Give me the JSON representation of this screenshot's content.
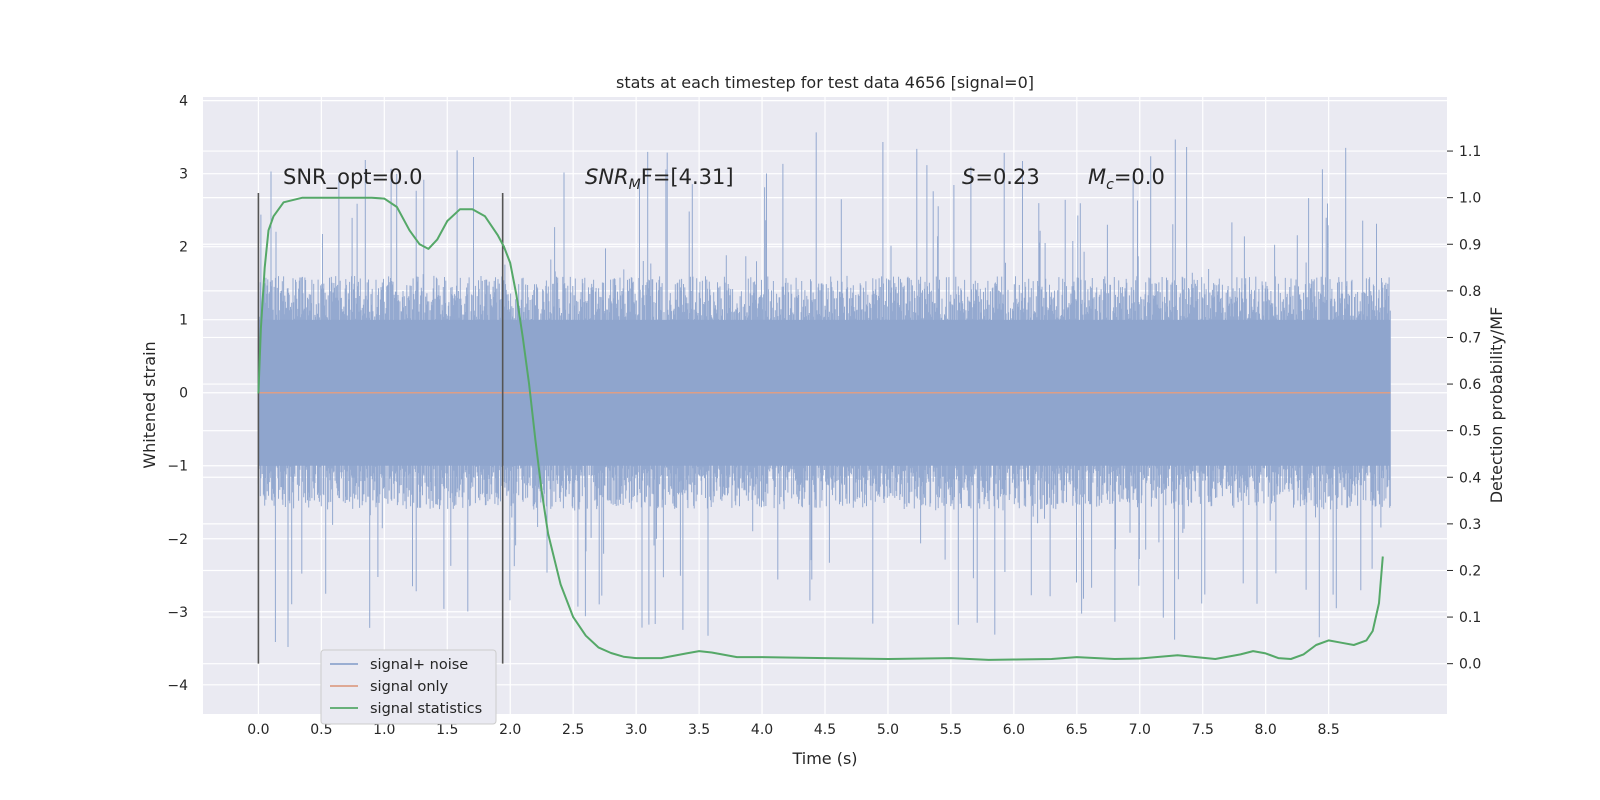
{
  "chart_data": {
    "type": "line",
    "title": "stats at each timestep for test data 4656 [signal=0]",
    "xlabel": "Time (s)",
    "ylabel": "Whitened strain",
    "y2label": "Detection probability/MF",
    "xlim": [
      -0.44,
      9.44
    ],
    "ylim": [
      -4.4,
      4.05
    ],
    "y2lim": [
      -0.108,
      1.216
    ],
    "x_ticks": [
      "0.0",
      "0.5",
      "1.0",
      "1.5",
      "2.0",
      "2.5",
      "3.0",
      "3.5",
      "4.0",
      "4.5",
      "5.0",
      "5.5",
      "6.0",
      "6.5",
      "7.0",
      "7.5",
      "8.0",
      "8.5"
    ],
    "x_tick_values": [
      0.0,
      0.5,
      1.0,
      1.5,
      2.0,
      2.5,
      3.0,
      3.5,
      4.0,
      4.5,
      5.0,
      5.5,
      6.0,
      6.5,
      7.0,
      7.5,
      8.0,
      8.5
    ],
    "y_ticks": [
      "4",
      "3",
      "2",
      "1",
      "0",
      "−1",
      "−2",
      "−3",
      "−4"
    ],
    "y_tick_values": [
      4,
      3,
      2,
      1,
      0,
      -1,
      -2,
      -3,
      -4
    ],
    "y2_ticks": [
      "1.1",
      "1.0",
      "0.9",
      "0.8",
      "0.7",
      "0.6",
      "0.5",
      "0.4",
      "0.3",
      "0.2",
      "0.1",
      "0.0"
    ],
    "y2_tick_values": [
      1.1,
      1.0,
      0.9,
      0.8,
      0.7,
      0.6,
      0.5,
      0.4,
      0.3,
      0.2,
      0.1,
      0.0
    ],
    "annotations": {
      "snr_opt": "SNR_opt=0.0",
      "snr_mf_main": "SNR",
      "snr_mf_sub": "M",
      "snr_mf_rest": "F=[4.31]",
      "s_label": "S",
      "s_value": "=0.23",
      "mc_label": "M",
      "mc_sub": "c",
      "mc_value": "=0.0"
    },
    "vertical_markers_x": [
      0.0,
      1.94
    ],
    "series": [
      {
        "name": "signal+ noise",
        "axis": "left",
        "color": "#8fa5cd",
        "x_range": [
          0.0,
          8.99
        ],
        "typical_band": [
          -1.6,
          1.6
        ],
        "peak_max": 3.65,
        "peak_min": -3.6
      },
      {
        "name": "signal only",
        "axis": "left",
        "color": "#dd9e86",
        "x": [
          0.0,
          8.99
        ],
        "y": [
          0.0,
          0.0
        ]
      },
      {
        "name": "signal statistics",
        "axis": "right",
        "color": "#55a868",
        "x": [
          0.0,
          0.02,
          0.05,
          0.08,
          0.12,
          0.2,
          0.35,
          0.5,
          0.7,
          0.9,
          1.0,
          1.1,
          1.2,
          1.28,
          1.35,
          1.42,
          1.5,
          1.6,
          1.7,
          1.8,
          1.9,
          1.95,
          2.0,
          2.05,
          2.1,
          2.15,
          2.2,
          2.25,
          2.3,
          2.4,
          2.5,
          2.6,
          2.7,
          2.8,
          2.9,
          3.0,
          3.2,
          3.4,
          3.5,
          3.6,
          3.8,
          4.0,
          4.5,
          5.0,
          5.5,
          5.8,
          6.0,
          6.3,
          6.5,
          6.8,
          7.0,
          7.3,
          7.6,
          7.8,
          7.9,
          8.0,
          8.1,
          8.2,
          8.3,
          8.4,
          8.5,
          8.6,
          8.7,
          8.8,
          8.85,
          8.9,
          8.93
        ],
        "y": [
          0.58,
          0.72,
          0.85,
          0.93,
          0.96,
          0.99,
          1.0,
          1.0,
          1.0,
          1.0,
          0.998,
          0.98,
          0.93,
          0.9,
          0.89,
          0.91,
          0.95,
          0.975,
          0.975,
          0.96,
          0.92,
          0.895,
          0.86,
          0.79,
          0.7,
          0.6,
          0.48,
          0.37,
          0.28,
          0.17,
          0.1,
          0.06,
          0.035,
          0.023,
          0.015,
          0.012,
          0.012,
          0.022,
          0.027,
          0.024,
          0.014,
          0.014,
          0.012,
          0.01,
          0.012,
          0.008,
          0.009,
          0.01,
          0.014,
          0.01,
          0.011,
          0.018,
          0.01,
          0.02,
          0.027,
          0.022,
          0.012,
          0.01,
          0.02,
          0.04,
          0.05,
          0.045,
          0.04,
          0.05,
          0.07,
          0.13,
          0.23
        ]
      }
    ],
    "legend_position": "bottom-left"
  }
}
